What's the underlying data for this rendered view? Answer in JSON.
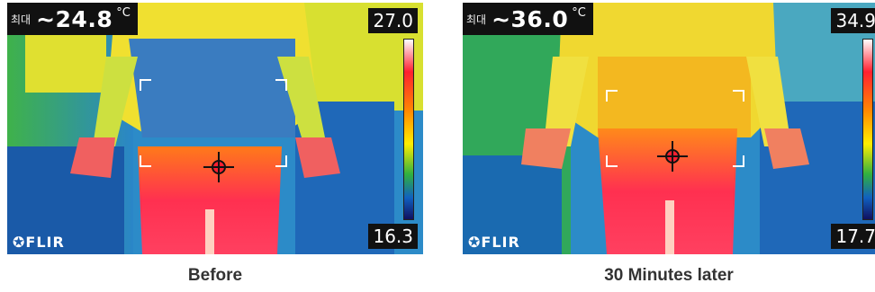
{
  "panels": [
    {
      "hud_label": "최대",
      "max_temp": "~24.8",
      "unit": "°C",
      "scale_max": "27.0",
      "scale_min": "16.3",
      "logo": "FLIR",
      "caption": "Before"
    },
    {
      "hud_label": "최대",
      "max_temp": "~36.0",
      "unit": "°C",
      "scale_max": "34.9",
      "scale_min": "17.7",
      "logo": "FLIR",
      "caption": "30 Minutes later"
    }
  ],
  "palette": {
    "cold": "#1060c0",
    "cool": "#30b040",
    "warm": "#ffee00",
    "hot": "#ff2030",
    "hottest": "#ffffff"
  }
}
